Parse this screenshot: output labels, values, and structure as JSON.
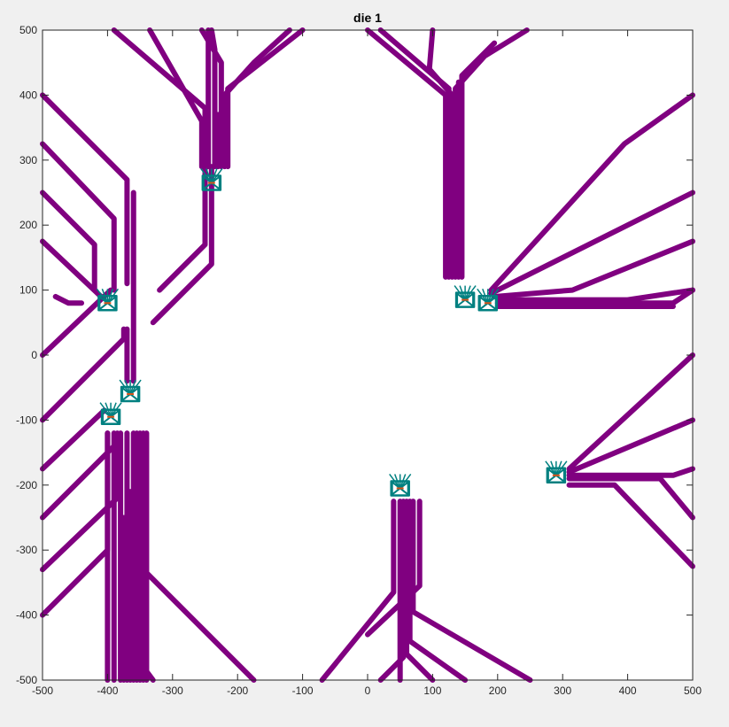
{
  "chart_data": {
    "type": "line",
    "title": "die 1",
    "xlabel": "",
    "ylabel": "",
    "xlim": [
      -500,
      500
    ],
    "ylim": [
      -500,
      500
    ],
    "xticks": [
      -500,
      -400,
      -300,
      -200,
      -100,
      0,
      100,
      200,
      300,
      400,
      500
    ],
    "yticks": [
      -500,
      -400,
      -300,
      -200,
      -100,
      0,
      100,
      200,
      300,
      400,
      500
    ],
    "grid": false,
    "colors": {
      "trace": "#800080",
      "pad": "#008080",
      "marker": "#d95319",
      "axes_bg": "#ffffff",
      "figure_bg": "#f0f0f0"
    },
    "traces": [
      [
        [
          -400,
          -500
        ],
        [
          -400,
          -230
        ],
        [
          -400,
          -120
        ]
      ],
      [
        [
          -390,
          -500
        ],
        [
          -390,
          -250
        ],
        [
          -390,
          -120
        ]
      ],
      [
        [
          -380,
          -500
        ],
        [
          -380,
          -120
        ]
      ],
      [
        [
          -370,
          -500
        ],
        [
          -370,
          -120
        ]
      ],
      [
        [
          -360,
          -500
        ],
        [
          -360,
          -120
        ]
      ],
      [
        [
          -350,
          -500
        ],
        [
          -350,
          -120
        ]
      ],
      [
        [
          -345,
          -500
        ],
        [
          -345,
          -120
        ]
      ],
      [
        [
          -340,
          -500
        ],
        [
          -340,
          -120
        ]
      ],
      [
        [
          -500,
          -400
        ],
        [
          -400,
          -300
        ],
        [
          -400,
          -120
        ]
      ],
      [
        [
          -500,
          -330
        ],
        [
          -385,
          -220
        ],
        [
          -385,
          -120
        ]
      ],
      [
        [
          -500,
          -250
        ],
        [
          -380,
          -130
        ]
      ],
      [
        [
          -500,
          -175
        ],
        [
          -405,
          -85
        ]
      ],
      [
        [
          -500,
          -100
        ],
        [
          -375,
          25
        ],
        [
          -375,
          40
        ]
      ],
      [
        [
          -500,
          0
        ],
        [
          -395,
          100
        ]
      ],
      [
        [
          -500,
          175
        ],
        [
          -410,
          90
        ]
      ],
      [
        [
          -500,
          250
        ],
        [
          -420,
          170
        ],
        [
          -420,
          100
        ]
      ],
      [
        [
          -500,
          325
        ],
        [
          -390,
          210
        ],
        [
          -390,
          100
        ]
      ],
      [
        [
          -500,
          400
        ],
        [
          -370,
          270
        ],
        [
          -370,
          110
        ]
      ],
      [
        [
          -375,
          -500
        ],
        [
          -375,
          -250
        ]
      ],
      [
        [
          -365,
          -500
        ],
        [
          -365,
          -210
        ]
      ],
      [
        [
          -355,
          -500
        ],
        [
          -355,
          -195
        ]
      ],
      [
        [
          -330,
          -500
        ],
        [
          -345,
          -480
        ],
        [
          -365,
          -450
        ]
      ],
      [
        [
          -175,
          -500
        ],
        [
          -355,
          -320
        ],
        [
          -355,
          -120
        ]
      ],
      [
        [
          -370,
          -40
        ],
        [
          -370,
          40
        ]
      ],
      [
        [
          -360,
          -40
        ],
        [
          -360,
          110
        ],
        [
          -360,
          250
        ]
      ],
      [
        [
          -480,
          90
        ],
        [
          -460,
          80
        ],
        [
          -440,
          80
        ]
      ],
      [
        [
          -250,
          290
        ],
        [
          -250,
          170
        ],
        [
          -320,
          100
        ]
      ],
      [
        [
          -245,
          290
        ],
        [
          -245,
          500
        ]
      ],
      [
        [
          -240,
          290
        ],
        [
          -240,
          140
        ],
        [
          -330,
          50
        ]
      ],
      [
        [
          -235,
          290
        ],
        [
          -235,
          470
        ],
        [
          -240,
          500
        ]
      ],
      [
        [
          -230,
          290
        ],
        [
          -230,
          370
        ]
      ],
      [
        [
          -225,
          290
        ],
        [
          -225,
          450
        ],
        [
          -255,
          500
        ]
      ],
      [
        [
          -220,
          290
        ],
        [
          -220,
          400
        ],
        [
          -175,
          450
        ],
        [
          -120,
          500
        ]
      ],
      [
        [
          -215,
          290
        ],
        [
          -215,
          410
        ],
        [
          -100,
          500
        ]
      ],
      [
        [
          -250,
          290
        ],
        [
          -250,
          380
        ],
        [
          -390,
          500
        ]
      ],
      [
        [
          -255,
          290
        ],
        [
          -255,
          360
        ],
        [
          -335,
          500
        ]
      ],
      [
        [
          120,
          120
        ],
        [
          120,
          400
        ],
        [
          0,
          500
        ]
      ],
      [
        [
          125,
          120
        ],
        [
          125,
          410
        ],
        [
          20,
          500
        ]
      ],
      [
        [
          130,
          120
        ],
        [
          130,
          400
        ],
        [
          95,
          440
        ],
        [
          100,
          500
        ]
      ],
      [
        [
          135,
          120
        ],
        [
          135,
          410
        ],
        [
          180,
          460
        ],
        [
          245,
          500
        ]
      ],
      [
        [
          140,
          120
        ],
        [
          140,
          420
        ]
      ],
      [
        [
          145,
          120
        ],
        [
          145,
          430
        ],
        [
          195,
          480
        ]
      ],
      [
        [
          190,
          100
        ],
        [
          395,
          325
        ],
        [
          500,
          400
        ]
      ],
      [
        [
          190,
          95
        ],
        [
          500,
          250
        ]
      ],
      [
        [
          195,
          90
        ],
        [
          315,
          100
        ],
        [
          500,
          175
        ]
      ],
      [
        [
          200,
          85
        ],
        [
          400,
          85
        ],
        [
          500,
          100
        ]
      ],
      [
        [
          200,
          80
        ],
        [
          470,
          80
        ],
        [
          500,
          100
        ]
      ],
      [
        [
          200,
          75
        ],
        [
          470,
          75
        ]
      ],
      [
        [
          310,
          -175
        ],
        [
          500,
          0
        ]
      ],
      [
        [
          310,
          -180
        ],
        [
          500,
          -100
        ]
      ],
      [
        [
          310,
          -185
        ],
        [
          470,
          -185
        ],
        [
          500,
          -175
        ]
      ],
      [
        [
          310,
          -190
        ],
        [
          450,
          -190
        ],
        [
          500,
          -250
        ]
      ],
      [
        [
          310,
          -200
        ],
        [
          380,
          -200
        ],
        [
          500,
          -325
        ]
      ],
      [
        [
          40,
          -225
        ],
        [
          40,
          -365
        ],
        [
          -70,
          -500
        ]
      ],
      [
        [
          50,
          -225
        ],
        [
          50,
          -500
        ]
      ],
      [
        [
          55,
          -225
        ],
        [
          55,
          -465
        ],
        [
          20,
          -500
        ]
      ],
      [
        [
          60,
          -225
        ],
        [
          60,
          -460
        ],
        [
          100,
          -500
        ]
      ],
      [
        [
          65,
          -225
        ],
        [
          65,
          -440
        ],
        [
          150,
          -500
        ]
      ],
      [
        [
          70,
          -225
        ],
        [
          70,
          -395
        ],
        [
          250,
          -500
        ]
      ],
      [
        [
          80,
          -225
        ],
        [
          80,
          -300
        ],
        [
          80,
          -355
        ],
        [
          0,
          -430
        ]
      ]
    ],
    "pads": [
      {
        "x": -240,
        "y": 265
      },
      {
        "x": -400,
        "y": 80
      },
      {
        "x": -365,
        "y": -60
      },
      {
        "x": -395,
        "y": -95
      },
      {
        "x": 150,
        "y": 85
      },
      {
        "x": 185,
        "y": 80
      },
      {
        "x": 290,
        "y": -185
      },
      {
        "x": 50,
        "y": -205
      }
    ]
  }
}
